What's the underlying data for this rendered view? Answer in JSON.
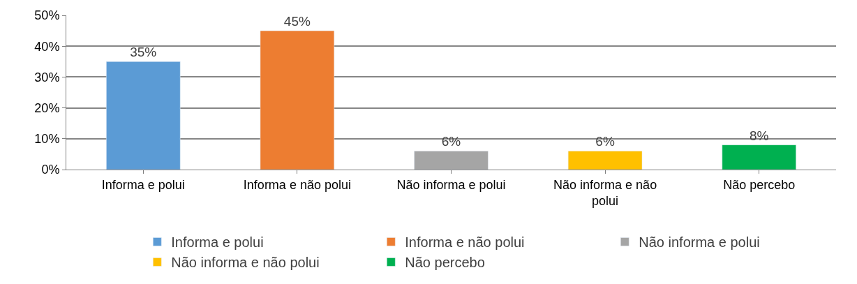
{
  "chart_data": {
    "type": "bar",
    "categories": [
      "Informa e polui",
      "Informa e não polui",
      "Não informa e polui",
      "Não informa e não polui",
      "Não percebo"
    ],
    "series": [
      {
        "name": "Informa e polui",
        "color": "#5b9bd5",
        "values": [
          35,
          null,
          null,
          null,
          null
        ],
        "value_labels": [
          "35%",
          null,
          null,
          null,
          null
        ]
      },
      {
        "name": "Informa e não polui",
        "color": "#ed7d31",
        "values": [
          null,
          45,
          null,
          null,
          null
        ],
        "value_labels": [
          null,
          "45%",
          null,
          null,
          null
        ]
      },
      {
        "name": "Não informa e polui",
        "color": "#a5a5a5",
        "values": [
          null,
          null,
          6,
          null,
          null
        ],
        "value_labels": [
          null,
          null,
          "6%",
          null,
          null
        ]
      },
      {
        "name": "Não informa e não polui",
        "color": "#ffc000",
        "values": [
          null,
          null,
          null,
          6,
          null
        ],
        "value_labels": [
          null,
          null,
          null,
          "6%",
          null
        ]
      },
      {
        "name": "Não percebo",
        "color": "#00b050",
        "values": [
          null,
          null,
          null,
          null,
          8
        ],
        "value_labels": [
          null,
          null,
          null,
          null,
          "8%"
        ]
      }
    ],
    "ylim": [
      0,
      50
    ],
    "yticks": [
      {
        "value": 0,
        "label": "0%"
      },
      {
        "value": 10,
        "label": "10%"
      },
      {
        "value": 20,
        "label": "20%"
      },
      {
        "value": 30,
        "label": "30%"
      },
      {
        "value": 40,
        "label": "40%"
      },
      {
        "value": 50,
        "label": "50%"
      }
    ],
    "grid": "y",
    "legend": "bottom"
  }
}
